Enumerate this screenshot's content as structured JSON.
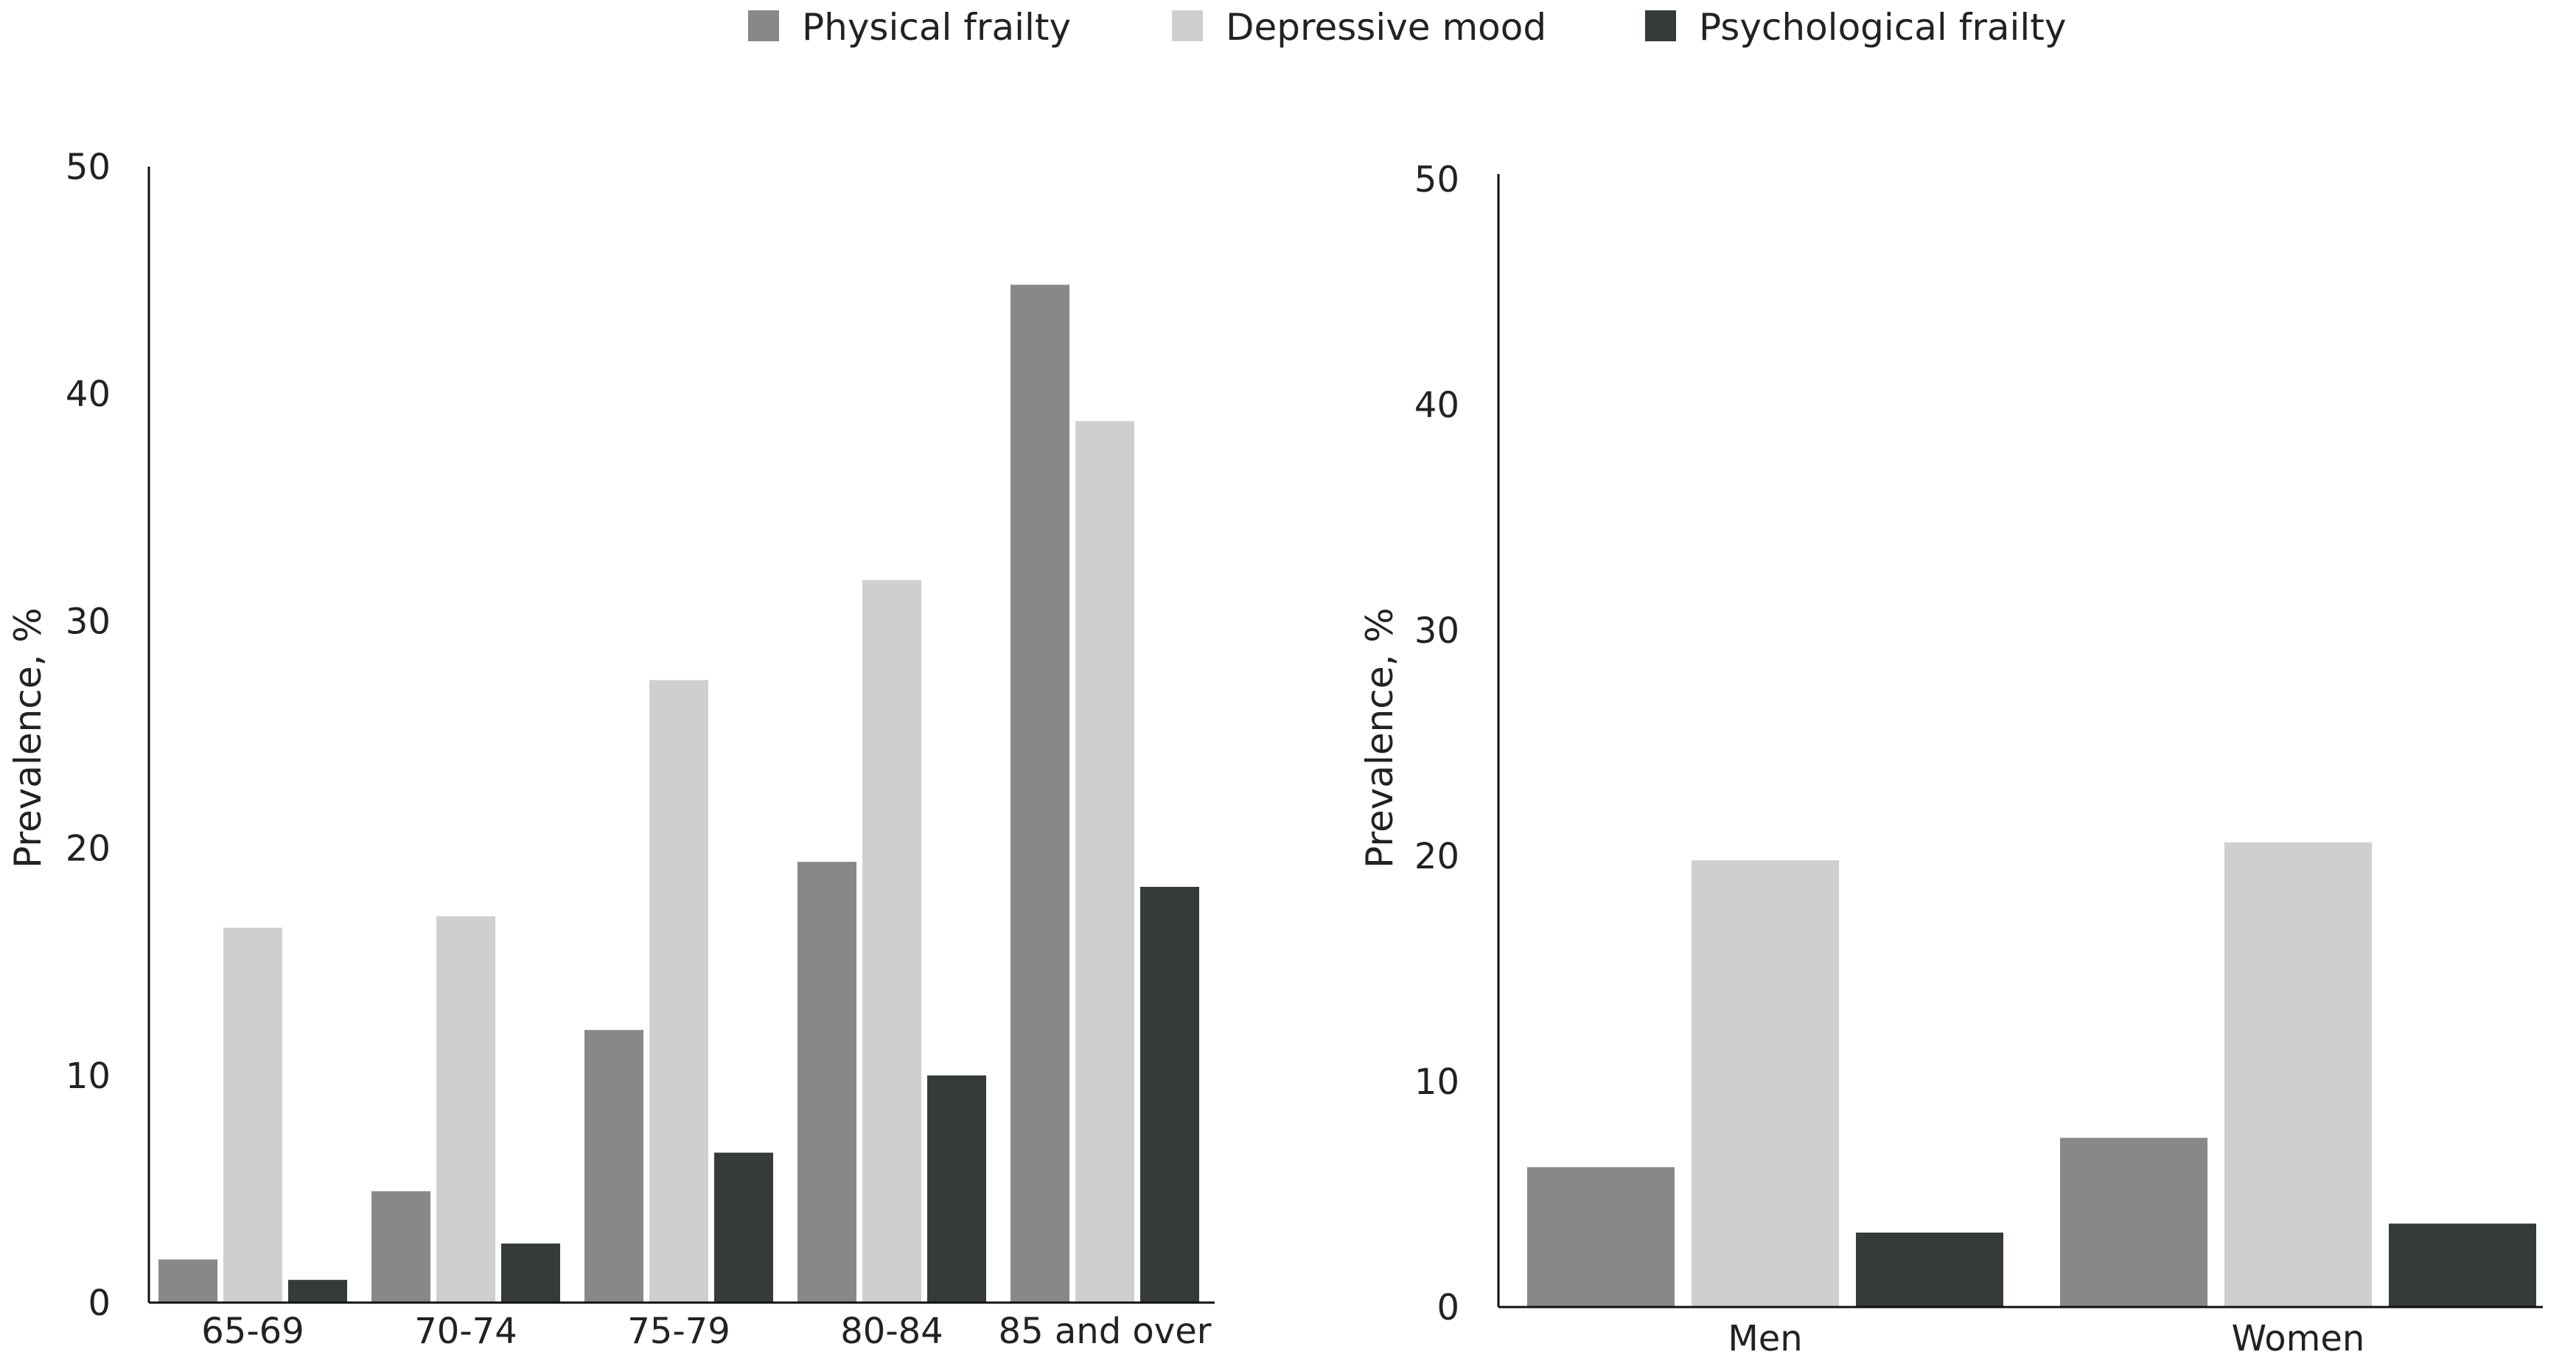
{
  "legend": {
    "items": [
      {
        "label": "Physical frailty",
        "color": "#888888"
      },
      {
        "label": "Depressive mood",
        "color": "#cfcfcf"
      },
      {
        "label": "Psychological frailty",
        "color": "#353a3a"
      }
    ]
  },
  "chart_data": [
    {
      "type": "bar",
      "title": "",
      "xlabel": "",
      "ylabel": "Prevalence, %",
      "ylim": [
        0,
        50
      ],
      "yticks": [
        "0",
        "10",
        "20",
        "30",
        "40",
        "50"
      ],
      "categories": [
        "65-69",
        "70-74",
        "75-79",
        "80-84",
        "85 and over"
      ],
      "series": [
        {
          "name": "Physical frailty",
          "values": [
            1.9,
            4.9,
            12.0,
            19.4,
            44.8
          ]
        },
        {
          "name": "Depressive mood",
          "values": [
            16.5,
            17.0,
            27.4,
            31.8,
            38.8
          ]
        },
        {
          "name": "Psychological frailty",
          "values": [
            1.0,
            2.6,
            6.6,
            10.0,
            18.3
          ]
        }
      ]
    },
    {
      "type": "bar",
      "title": "",
      "xlabel": "",
      "ylabel": "Prevalence, %",
      "ylim": [
        0,
        50
      ],
      "yticks": [
        "0",
        "10",
        "20",
        "30",
        "40",
        "50"
      ],
      "categories": [
        "Men",
        "Women"
      ],
      "series": [
        {
          "name": "Physical frailty",
          "values": [
            6.2,
            7.5
          ]
        },
        {
          "name": "Depressive mood",
          "values": [
            19.8,
            20.6
          ]
        },
        {
          "name": "Psychological frailty",
          "values": [
            3.3,
            3.7
          ]
        }
      ]
    }
  ]
}
